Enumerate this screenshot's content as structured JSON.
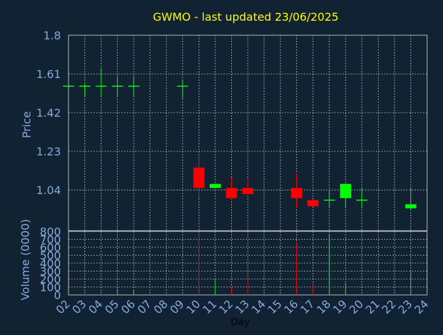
{
  "chart_data": {
    "type": "candlestick",
    "title": "GWMO - last updated 23/06/2025",
    "xlabel": "Day",
    "colors": {
      "background": "#112233",
      "frame": "#bbbbbb",
      "grid": "#bbbbbb",
      "tick_text": "#88aadd",
      "title": "#ffff00",
      "up": "#00ff00",
      "down": "#ff0000"
    },
    "x_ticks": [
      "02",
      "03",
      "04",
      "05",
      "06",
      "07",
      "08",
      "09",
      "10",
      "11",
      "12",
      "13",
      "14",
      "15",
      "16",
      "17",
      "18",
      "19",
      "20",
      "21",
      "22",
      "23",
      "24"
    ],
    "price_panel": {
      "ylabel": "Price",
      "ylim": [
        0.84,
        1.8
      ],
      "ticks": [
        "1.8",
        "1.61",
        "1.42",
        "1.23",
        "1.04"
      ],
      "tick_values": [
        1.8,
        1.61,
        1.42,
        1.23,
        1.04
      ],
      "candles": [
        {
          "day": "02",
          "open": 1.55,
          "high": 1.55,
          "low": 1.55,
          "close": 1.55
        },
        {
          "day": "03",
          "open": 1.55,
          "high": 1.56,
          "low": 1.5,
          "close": 1.55
        },
        {
          "day": "04",
          "open": 1.55,
          "high": 1.64,
          "low": 1.5,
          "close": 1.55
        },
        {
          "day": "05",
          "open": 1.55,
          "high": 1.6,
          "low": 1.5,
          "close": 1.55
        },
        {
          "day": "06",
          "open": 1.55,
          "high": 1.6,
          "low": 1.5,
          "close": 1.55
        },
        {
          "day": "09",
          "open": 1.55,
          "high": 1.58,
          "low": 1.49,
          "close": 1.55
        },
        {
          "day": "10",
          "open": 1.15,
          "high": 1.2,
          "low": 1.0,
          "close": 1.05
        },
        {
          "day": "11",
          "open": 1.05,
          "high": 1.07,
          "low": 1.05,
          "close": 1.07
        },
        {
          "day": "12",
          "open": 1.05,
          "high": 1.1,
          "low": 0.99,
          "close": 1.0
        },
        {
          "day": "13",
          "open": 1.05,
          "high": 1.1,
          "low": 1.02,
          "close": 1.02
        },
        {
          "day": "16",
          "open": 1.05,
          "high": 1.12,
          "low": 0.95,
          "close": 1.0
        },
        {
          "day": "17",
          "open": 0.99,
          "high": 0.99,
          "low": 0.96,
          "close": 0.96
        },
        {
          "day": "18",
          "open": 0.99,
          "high": 1.04,
          "low": 0.95,
          "close": 0.99
        },
        {
          "day": "19",
          "open": 1.0,
          "high": 1.07,
          "low": 0.95,
          "close": 1.07
        },
        {
          "day": "20",
          "open": 0.99,
          "high": 1.05,
          "low": 0.95,
          "close": 0.99
        },
        {
          "day": "23",
          "open": 0.95,
          "high": 1.05,
          "low": 0.94,
          "close": 0.97
        }
      ]
    },
    "volume_panel": {
      "ylabel": "Volume (0000)",
      "ylim": [
        0,
        800
      ],
      "ticks": [
        "800",
        "700",
        "600",
        "500",
        "400",
        "300",
        "200",
        "100",
        "0"
      ],
      "tick_values": [
        800,
        700,
        600,
        500,
        400,
        300,
        200,
        100,
        0
      ],
      "bars": [
        {
          "day": "05",
          "value": 80,
          "dir": "up"
        },
        {
          "day": "06",
          "value": 70,
          "dir": "up"
        },
        {
          "day": "10",
          "value": 760,
          "dir": "down"
        },
        {
          "day": "11",
          "value": 190,
          "dir": "up"
        },
        {
          "day": "12",
          "value": 100,
          "dir": "down"
        },
        {
          "day": "13",
          "value": 200,
          "dir": "down"
        },
        {
          "day": "16",
          "value": 660,
          "dir": "down"
        },
        {
          "day": "17",
          "value": 150,
          "dir": "down"
        },
        {
          "day": "18",
          "value": 770,
          "dir": "up"
        },
        {
          "day": "19",
          "value": 150,
          "dir": "up"
        },
        {
          "day": "23",
          "value": 290,
          "dir": "up"
        }
      ]
    }
  }
}
